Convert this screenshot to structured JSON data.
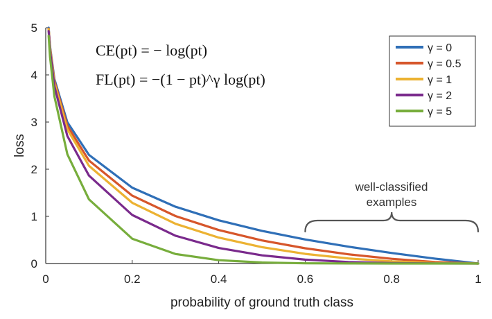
{
  "chart_data": {
    "type": "line",
    "title": "",
    "xlabel": "probability of ground truth class",
    "ylabel": "loss",
    "xlim": [
      0,
      1
    ],
    "ylim": [
      0,
      5
    ],
    "x_ticks": [
      "0",
      "0.2",
      "0.4",
      "0.6",
      "0.8",
      "1"
    ],
    "y_ticks": [
      "0",
      "1",
      "2",
      "3",
      "4",
      "5"
    ],
    "grid": false,
    "legend_position": "top-right",
    "formulas": {
      "ce": "CE(pt) = − log(pt)",
      "fl": "FL(pt) = −(1 − pt)^γ log(pt)"
    },
    "annotation": {
      "line1": "well-classified",
      "line2": "examples",
      "x_range": [
        0.6,
        1.0
      ]
    },
    "x": [
      0.0067,
      0.01,
      0.02,
      0.05,
      0.1,
      0.2,
      0.3,
      0.4,
      0.5,
      0.6,
      0.7,
      0.8,
      0.9,
      1.0
    ],
    "series": [
      {
        "name": "γ = 0",
        "color": "#2f6fb7",
        "values": [
          5.0,
          4.605,
          3.912,
          2.996,
          2.303,
          1.609,
          1.204,
          0.916,
          0.693,
          0.511,
          0.357,
          0.223,
          0.105,
          0.0
        ]
      },
      {
        "name": "γ = 0.5",
        "color": "#d6562b",
        "values": [
          4.98,
          4.582,
          3.873,
          2.92,
          2.184,
          1.44,
          1.007,
          0.71,
          0.49,
          0.323,
          0.195,
          0.1,
          0.033,
          0.0
        ]
      },
      {
        "name": "γ = 1",
        "color": "#ecb232",
        "values": [
          4.97,
          4.559,
          3.834,
          2.846,
          2.072,
          1.288,
          0.843,
          0.55,
          0.347,
          0.204,
          0.107,
          0.045,
          0.011,
          0.0
        ]
      },
      {
        "name": "γ = 2",
        "color": "#7a2a8c",
        "values": [
          4.93,
          4.513,
          3.757,
          2.704,
          1.865,
          1.03,
          0.59,
          0.33,
          0.173,
          0.082,
          0.032,
          0.009,
          0.001,
          0.0
        ]
      },
      {
        "name": "γ = 5",
        "color": "#77ad3c",
        "values": [
          4.83,
          4.379,
          3.544,
          2.318,
          1.36,
          0.527,
          0.202,
          0.071,
          0.022,
          0.005,
          0.001,
          0.0,
          0.0,
          0.0
        ]
      }
    ]
  }
}
